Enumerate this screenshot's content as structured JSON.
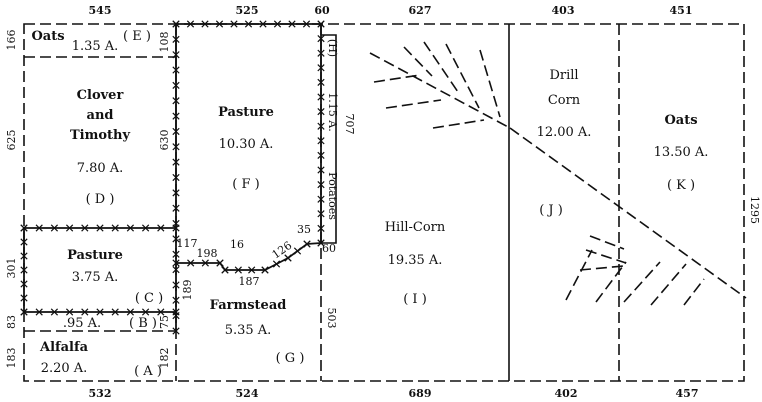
{
  "dimensions": {
    "top": [
      "545",
      "525",
      "60",
      "627",
      "403",
      "451"
    ],
    "bottom": [
      "532",
      "524",
      "689",
      "402",
      "457"
    ],
    "left": [
      "166",
      "625",
      "301",
      "83",
      "183"
    ],
    "right": "1295",
    "inner": [
      "108",
      "630",
      "117",
      "189",
      "75",
      "182",
      "707",
      "503",
      "198",
      "16",
      "187",
      "126",
      "35",
      "60"
    ]
  },
  "fields": {
    "E": {
      "name": "Oats",
      "area": "1.35 A.",
      "letter": "( E )"
    },
    "D": {
      "name_lines": [
        "Clover",
        "and",
        "Timothy"
      ],
      "area": "7.80 A.",
      "letter": "( D )"
    },
    "C": {
      "name": "Pasture",
      "area": "3.75 A.",
      "letter": "( C )"
    },
    "B": {
      "area": ".95 A.",
      "letter": "( B )"
    },
    "A": {
      "name": "Alfalfa",
      "area": "2.20 A.",
      "letter": "( A )"
    },
    "F": {
      "name": "Pasture",
      "area": "10.30 A.",
      "letter": "( F )"
    },
    "G": {
      "name": "Farmstead",
      "area": "5.35 A.",
      "letter": "( G )"
    },
    "H": {
      "name": "Potatoes",
      "area": "1.15 A.",
      "letter": "(H)"
    },
    "I": {
      "name": "Hill-Corn",
      "area": "19.35 A.",
      "letter": "( I )"
    },
    "J": {
      "name_lines": [
        "Drill",
        "Corn"
      ],
      "area": "12.00 A.",
      "letter": "( J )"
    },
    "K": {
      "name": "Oats",
      "area": "13.50 A.",
      "letter": "( K )"
    }
  }
}
